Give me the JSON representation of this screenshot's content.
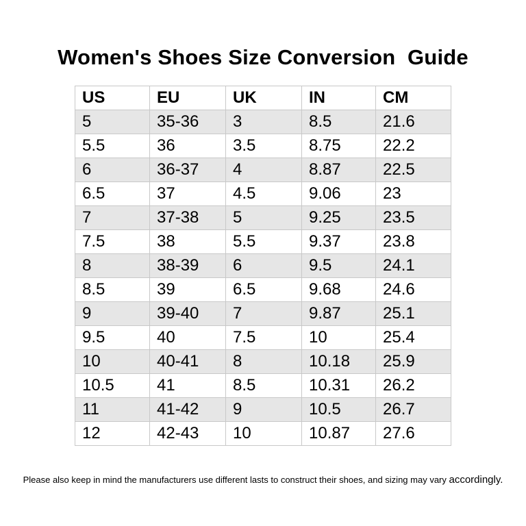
{
  "title": "Women's Shoes Size Conversion  Guide",
  "table": {
    "headers": [
      "US",
      "EU",
      "UK",
      "IN",
      "CM"
    ],
    "rows": [
      [
        "5",
        "35-36",
        "3",
        "8.5",
        "21.6"
      ],
      [
        "5.5",
        "36",
        "3.5",
        "8.75",
        "22.2"
      ],
      [
        "6",
        "36-37",
        "4",
        "8.87",
        "22.5"
      ],
      [
        "6.5",
        "37",
        "4.5",
        "9.06",
        "23"
      ],
      [
        "7",
        "37-38",
        "5",
        "9.25",
        "23.5"
      ],
      [
        "7.5",
        "38",
        "5.5",
        "9.37",
        "23.8"
      ],
      [
        "8",
        "38-39",
        "6",
        "9.5",
        "24.1"
      ],
      [
        "8.5",
        "39",
        "6.5",
        "9.68",
        "24.6"
      ],
      [
        "9",
        "39-40",
        "7",
        "9.87",
        "25.1"
      ],
      [
        "9.5",
        "40",
        "7.5",
        "10",
        "25.4"
      ],
      [
        "10",
        "40-41",
        "8",
        "10.18",
        "25.9"
      ],
      [
        "10.5",
        "41",
        "8.5",
        "10.31",
        "26.2"
      ],
      [
        "11",
        "41-42",
        "9",
        "10.5",
        "26.7"
      ],
      [
        "12",
        "42-43",
        "10",
        "10.87",
        "27.6"
      ]
    ]
  },
  "footnote": {
    "main": "Please also keep in mind the manufacturers use different lasts to construct their shoes, and sizing may vary ",
    "end": "accordingly."
  },
  "colors": {
    "stripe": "#e6e6e6",
    "grid": "#c8c8c8",
    "text": "#000000"
  }
}
